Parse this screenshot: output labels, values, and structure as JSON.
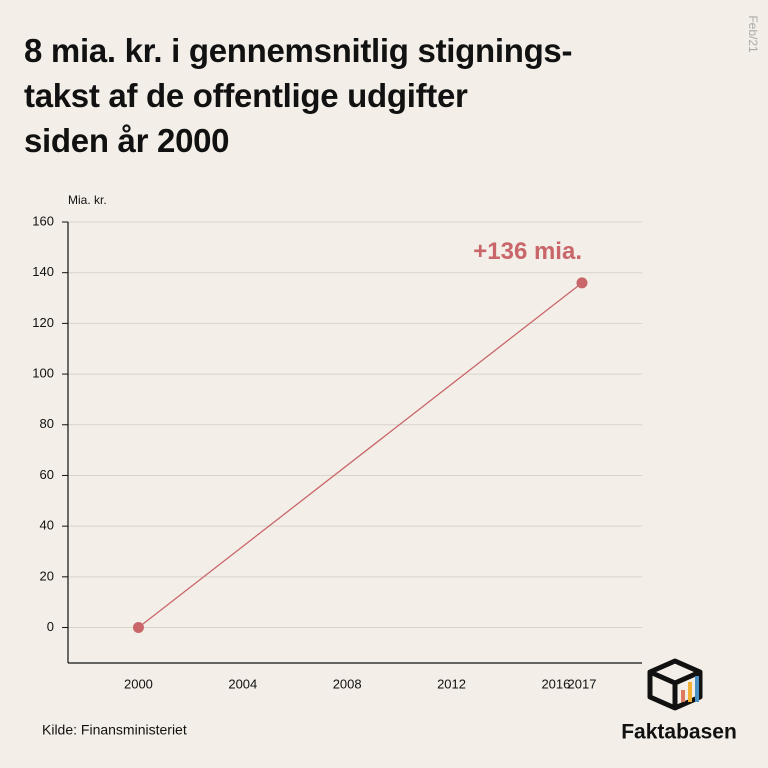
{
  "chart_data": {
    "type": "line",
    "title": "8 mia. kr. i gennemsnitlig stignings-\ntakst af de offentlige udgifter\nsiden år 2000",
    "y_label": "Mia. kr.",
    "source": "Kilde: Finansministeriet",
    "date": "Feb/21",
    "brand": "Faktabasen",
    "x": [
      2000,
      2017
    ],
    "series": [
      {
        "name": "Offentlige udgifter",
        "color": "#c9666a",
        "values": [
          0,
          136
        ],
        "value_labels": [
          null,
          "+136 mia."
        ]
      }
    ],
    "xlim": [
      1997.3,
      2019.3
    ],
    "xticks": [
      2000,
      2004,
      2008,
      2012,
      2016,
      2017
    ],
    "ylim": [
      -14,
      160
    ],
    "yticks": [
      0,
      20,
      40,
      60,
      80,
      100,
      120,
      140,
      160
    ],
    "grid": true
  }
}
